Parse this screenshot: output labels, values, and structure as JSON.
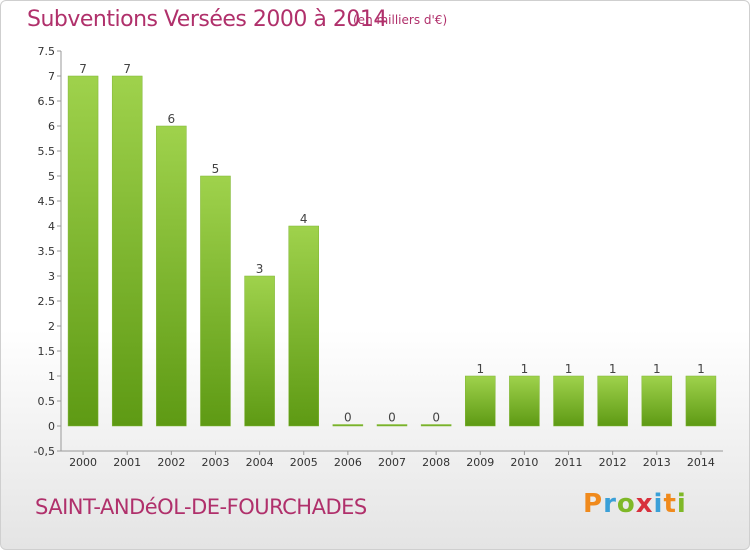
{
  "header": {
    "title": "Subventions Versées 2000 à 2014",
    "subtitle": "(en milliers d'€)"
  },
  "footer": {
    "commune": "SAINT-ANDéOL-DE-FOURCHADES",
    "logo": "Proxiti"
  },
  "colors": {
    "bar_top": "#9fd24c",
    "bar_bottom": "#5e9a14",
    "title": "#b0306b"
  },
  "chart_data": {
    "type": "bar",
    "title": "Subventions Versées 2000 à 2014",
    "subtitle": "(en milliers d'€)",
    "xlabel": "",
    "ylabel": "",
    "categories": [
      "2000",
      "2001",
      "2002",
      "2003",
      "2004",
      "2005",
      "2006",
      "2007",
      "2008",
      "2009",
      "2010",
      "2011",
      "2012",
      "2013",
      "2014"
    ],
    "values": [
      7,
      7,
      6,
      5,
      3,
      4,
      0,
      0,
      0,
      1,
      1,
      1,
      1,
      1,
      1
    ],
    "data_labels": [
      "7",
      "7",
      "6",
      "5",
      "3",
      "4",
      "0",
      "0",
      "0",
      "1",
      "1",
      "1",
      "1",
      "1",
      "1"
    ],
    "ylim": [
      -0.5,
      7.5
    ],
    "yticks": [
      "-0,5",
      "0",
      "0.5",
      "1",
      "1.5",
      "2",
      "2.5",
      "3",
      "3.5",
      "4",
      "4.5",
      "5",
      "5.5",
      "6",
      "6.5",
      "7",
      "7.5"
    ],
    "grid": false,
    "legend": "none"
  }
}
